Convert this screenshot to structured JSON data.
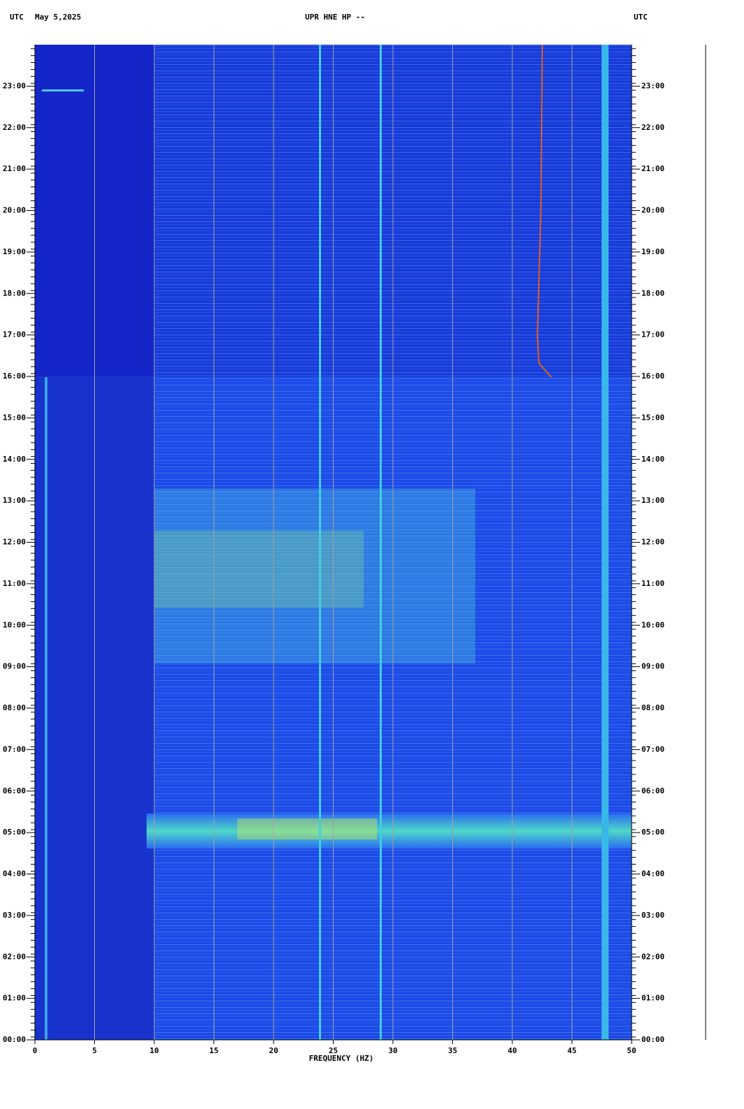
{
  "chart_data": {
    "type": "spectrogram",
    "title": "UPR HNE HP --",
    "left_label": "UTC",
    "date": "May 5,2025",
    "right_label": "UTC",
    "x_label": "FREQUENCY (HZ)",
    "xlim": [
      0,
      50
    ],
    "xticks": [
      0,
      5,
      10,
      15,
      20,
      25,
      30,
      35,
      40,
      45,
      50
    ],
    "ylim": [
      0,
      24
    ],
    "yticks": [
      {
        "value": 0,
        "label": "00:00"
      },
      {
        "value": 1,
        "label": "01:00"
      },
      {
        "value": 2,
        "label": "02:00"
      },
      {
        "value": 3,
        "label": "03:00"
      },
      {
        "value": 4,
        "label": "04:00"
      },
      {
        "value": 5,
        "label": "05:00"
      },
      {
        "value": 6,
        "label": "06:00"
      },
      {
        "value": 7,
        "label": "07:00"
      },
      {
        "value": 8,
        "label": "08:00"
      },
      {
        "value": 9,
        "label": "09:00"
      },
      {
        "value": 10,
        "label": "10:00"
      },
      {
        "value": 11,
        "label": "11:00"
      },
      {
        "value": 12,
        "label": "12:00"
      },
      {
        "value": 13,
        "label": "13:00"
      },
      {
        "value": 14,
        "label": "14:00"
      },
      {
        "value": 15,
        "label": "15:00"
      },
      {
        "value": 16,
        "label": "16:00"
      },
      {
        "value": 17,
        "label": "17:00"
      },
      {
        "value": 18,
        "label": "18:00"
      },
      {
        "value": 19,
        "label": "19:00"
      },
      {
        "value": 20,
        "label": "20:00"
      },
      {
        "value": 21,
        "label": "21:00"
      },
      {
        "value": 22,
        "label": "22:00"
      },
      {
        "value": 23,
        "label": "23:00"
      }
    ],
    "grid": true
  }
}
